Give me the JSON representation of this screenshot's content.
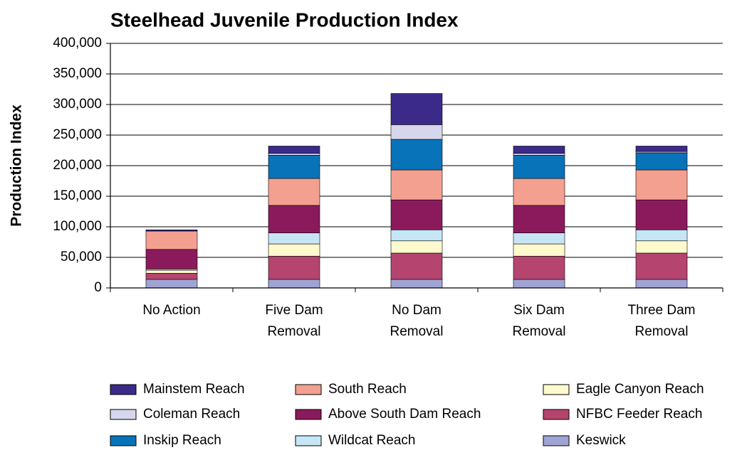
{
  "chart_data": {
    "type": "stacked_bar",
    "title": "Steelhead Juvenile Production Index",
    "y_label": "Production Index",
    "categories": [
      "No Action",
      "Five Dam Removal",
      "No Dam Removal",
      "Six Dam Removal",
      "Three Dam Removal"
    ],
    "series": [
      {
        "name": "Keswick",
        "color": "#a0a4d4",
        "values": [
          14000,
          14000,
          14000,
          14000,
          14000
        ]
      },
      {
        "name": "NFBC Feeder Reach",
        "color": "#b5456e",
        "values": [
          10000,
          38000,
          43000,
          38000,
          43000
        ]
      },
      {
        "name": "Eagle Canyon Reach",
        "color": "#fffacd",
        "values": [
          5000,
          20000,
          20000,
          20000,
          20000
        ]
      },
      {
        "name": "Wildcat Reach",
        "color": "#c6e6f6",
        "values": [
          2000,
          18000,
          18000,
          18000,
          18000
        ]
      },
      {
        "name": "Above South Dam Reach",
        "color": "#8b1a5c",
        "values": [
          32000,
          45000,
          49000,
          45000,
          49000
        ]
      },
      {
        "name": "South Reach",
        "color": "#f4a090",
        "values": [
          30000,
          44000,
          49000,
          44000,
          49000
        ]
      },
      {
        "name": "Inskip Reach",
        "color": "#0873b8",
        "values": [
          0,
          38000,
          50000,
          38000,
          28000
        ]
      },
      {
        "name": "Coleman Reach",
        "color": "#d6d6ec",
        "values": [
          0,
          3000,
          24000,
          3000,
          2000
        ]
      },
      {
        "name": "Mainstem Reach",
        "color": "#3b2a8a",
        "values": [
          2000,
          12000,
          51000,
          12000,
          9000
        ]
      }
    ],
    "ylim": [
      0,
      400000
    ],
    "yticks": [
      0,
      {
        "value": 50000,
        "label": "50,000"
      },
      {
        "value": 100000,
        "label": "100,000"
      },
      {
        "value": 150000,
        "label": "150,000"
      },
      {
        "value": 200000,
        "label": "200,000"
      },
      {
        "value": 250000,
        "label": "250,000"
      },
      {
        "value": 300000,
        "label": "300,000"
      },
      {
        "value": 350000,
        "label": "350,000"
      },
      {
        "value": 400000,
        "label": "400,000"
      }
    ],
    "grid": true
  }
}
